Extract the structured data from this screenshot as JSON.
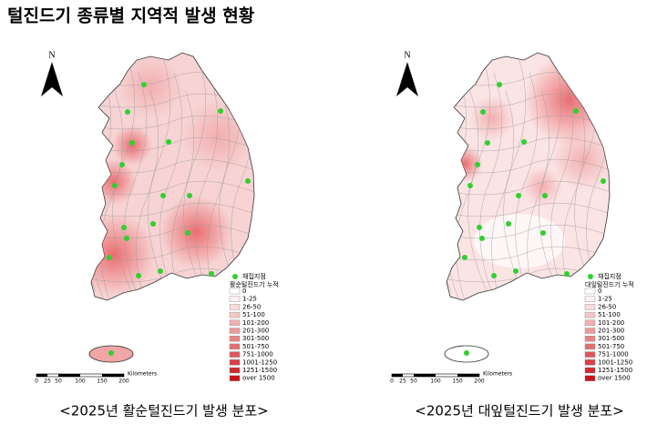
{
  "title": "털진드기 종류별 지역적 발생 현황",
  "panels": [
    {
      "caption": "<2025년 활순털진드기 발생 분포>",
      "north": "N",
      "legend": {
        "title": "채집지점",
        "subtitle": "활순털진드기 누적",
        "bins": [
          "0",
          "1-25",
          "26-50",
          "51-100",
          "101-200",
          "201-300",
          "301-500",
          "501-750",
          "751-1000",
          "1001-1250",
          "1251-1500",
          "over 1500"
        ]
      },
      "scale": {
        "ticks": [
          "0",
          "25",
          "50",
          "100",
          "150",
          "200"
        ],
        "unit": "Kilometers"
      }
    },
    {
      "caption": "<2025년 대잎털진드기 발생 분포>",
      "north": "N",
      "legend": {
        "title": "채집지점",
        "subtitle": "대잎털진드기 누적",
        "bins": [
          "0",
          "1-25",
          "26-50",
          "51-100",
          "101-200",
          "201-300",
          "301-500",
          "501-750",
          "751-1000",
          "1001-1250",
          "1251-1500",
          "over 1500"
        ]
      },
      "scale": {
        "ticks": [
          "0",
          "25",
          "50",
          "100",
          "150",
          "200"
        ],
        "unit": "Kilometers"
      }
    }
  ]
}
